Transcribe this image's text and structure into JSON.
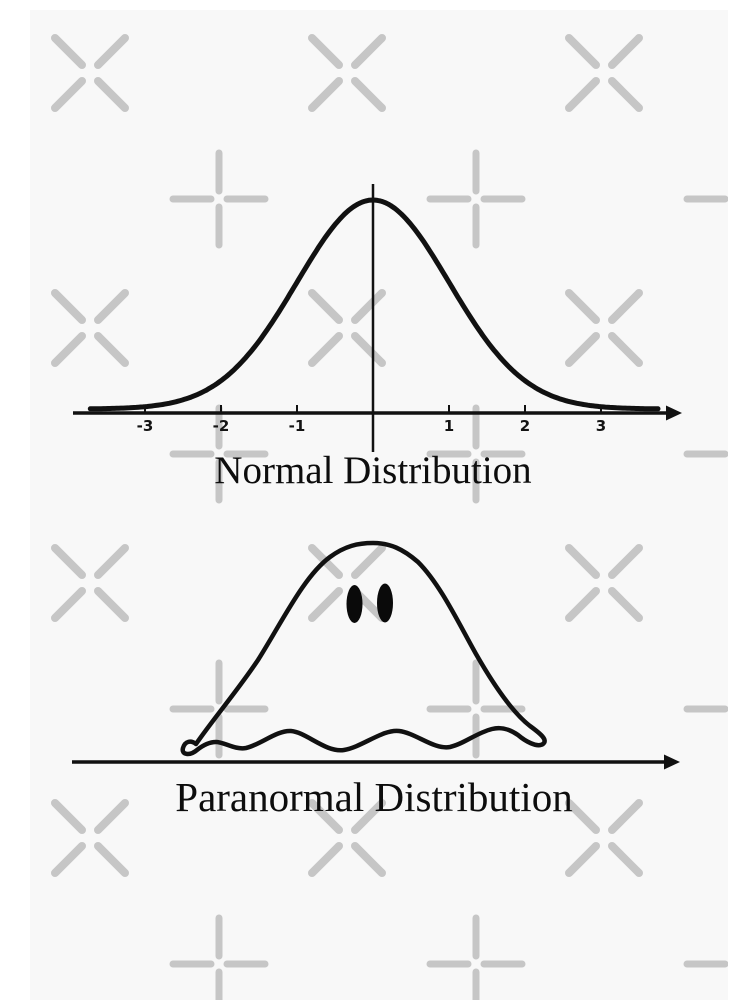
{
  "artwork": {
    "style": {
      "canvas_background": "#ffffff",
      "art_background": "#f8f8f8",
      "ink_color": "#111111",
      "watermark_color": "#c6c6c6"
    },
    "watermark_icons": [
      "x-watermark-icon",
      "plus-watermark-icon"
    ]
  },
  "chart_data": [
    {
      "type": "line",
      "name": "normal-distribution",
      "title": "Normal Distribution",
      "curve": "gaussian-bell",
      "gaussian": {
        "mean": 0,
        "sd": 1,
        "peak": 1
      },
      "x_range": [
        -3.72,
        3.75
      ],
      "x_ticks": [
        -3,
        -2,
        -1,
        1,
        2,
        3
      ],
      "x_tick_labels": [
        "-3",
        "-2",
        "-1",
        "1",
        "2",
        "3"
      ],
      "y_axis_shown_as": "vertical center line at mean",
      "x_axis_arrow": "right",
      "grid": false,
      "legend": false
    },
    {
      "type": "line",
      "name": "paranormal-distribution",
      "title": "Paranormal Distribution",
      "curve": "ghost-bell-with-wavy-hem-and-two-eyes",
      "x_ticks": [],
      "x_tick_labels": [],
      "x_axis_arrow": "right",
      "grid": false,
      "legend": false
    }
  ]
}
